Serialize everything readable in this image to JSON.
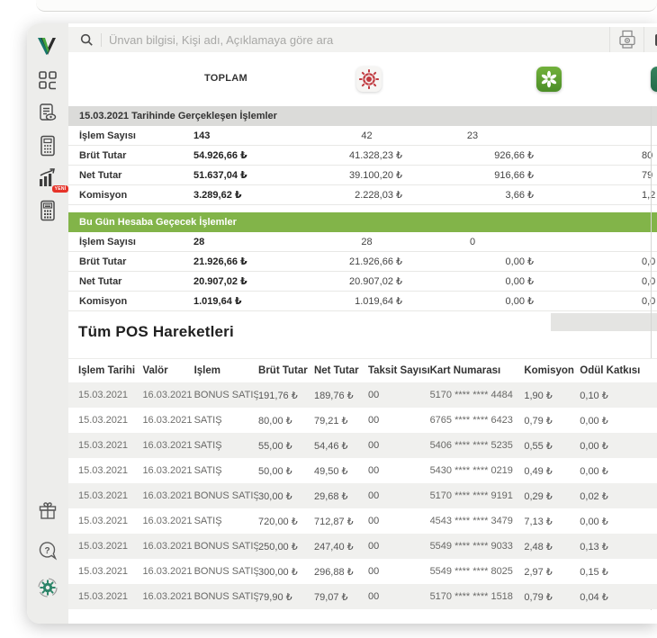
{
  "colors": {
    "accent_green": "#82b449",
    "badge_red": "#e63329",
    "denizbank_red": "#c03a40",
    "sekerbank_green": "#5d9e2f",
    "bank3_green": "#2f7e57",
    "section_header_gray": "#dbdbd9"
  },
  "search": {
    "placeholder": "Ünvan bilgisi, Kişi adı, Açıklamaya göre ara"
  },
  "sidebar": {
    "badge_new": "YENİ",
    "icons": [
      "logo-v",
      "dashboard-icon",
      "report-view-icon",
      "pos-terminal-icon",
      "trend-chart-icon",
      "pos-terminal-2-icon",
      "gift-icon",
      "help-icon",
      "settings-icon"
    ]
  },
  "topbar": {
    "icons": [
      "fax-icon",
      "clipped-icon"
    ]
  },
  "bank_header": {
    "toplam_label": "TOPLAM",
    "columns": [
      "denizbank-logo",
      "sekerbank-logo",
      "bank-logo-clipped"
    ]
  },
  "summary": {
    "sections": [
      {
        "title": "15.03.2021 Tarihinde Gerçekleşen İşlemler",
        "style": "gray",
        "rows": [
          {
            "label": "İşlem Sayısı",
            "toplam": "143",
            "bank1": "42",
            "bank2": "23",
            "bank3": ""
          },
          {
            "label": "Brüt Tutar",
            "toplam": "54.926,66 ₺",
            "bank1": "41.328,23 ₺",
            "bank2": "926,66 ₺",
            "bank3": "80"
          },
          {
            "label": "Net Tutar",
            "toplam": "51.637,04 ₺",
            "bank1": "39.100,20 ₺",
            "bank2": "916,66 ₺",
            "bank3": "79"
          },
          {
            "label": "Komisyon",
            "toplam": "3.289,62 ₺",
            "bank1": "2.228,03 ₺",
            "bank2": "3,66 ₺",
            "bank3": "1,2"
          }
        ]
      },
      {
        "title": "Bu Gün Hesaba Geçecek İşlemler",
        "style": "green",
        "rows": [
          {
            "label": "İşlem Sayısı",
            "toplam": "28",
            "bank1": "28",
            "bank2": "0",
            "bank3": ""
          },
          {
            "label": "Brüt Tutar",
            "toplam": "21.926,66 ₺",
            "bank1": "21.926,66 ₺",
            "bank2": "0,00 ₺",
            "bank3": "0,0"
          },
          {
            "label": "Net Tutar",
            "toplam": "20.907,02 ₺",
            "bank1": "20.907,02 ₺",
            "bank2": "0,00 ₺",
            "bank3": "0,0"
          },
          {
            "label": "Komisyon",
            "toplam": "1.019,64 ₺",
            "bank1": "1.019,64 ₺",
            "bank2": "0,00 ₺",
            "bank3": "0,0"
          }
        ]
      }
    ]
  },
  "pos_table": {
    "title": "Tüm POS Hareketleri",
    "columns": [
      "İşlem Tarihi",
      "Valör",
      "İşlem",
      "Brüt Tutar",
      "Net Tutar",
      "Taksit Sayısı",
      "Kart Numarası",
      "Komisyon",
      "Ödül Katkısı"
    ],
    "rows": [
      [
        "15.03.2021",
        "16.03.2021",
        "BONUS SATIŞ",
        "191,76 ₺",
        "189,76 ₺",
        "00",
        "5170 **** **** 4484",
        "1,90 ₺",
        "0,10 ₺"
      ],
      [
        "15.03.2021",
        "16.03.2021",
        "SATIŞ",
        "80,00 ₺",
        "79,21 ₺",
        "00",
        "6765 **** **** 6423",
        "0,79 ₺",
        "0,00 ₺"
      ],
      [
        "15.03.2021",
        "16.03.2021",
        "SATIŞ",
        "55,00 ₺",
        "54,46 ₺",
        "00",
        "5406 **** **** 5235",
        "0,55 ₺",
        "0,00 ₺"
      ],
      [
        "15.03.2021",
        "16.03.2021",
        "SATIŞ",
        "50,00 ₺",
        "49,50 ₺",
        "00",
        "5430 **** **** 0219",
        "0,49 ₺",
        "0,00 ₺"
      ],
      [
        "15.03.2021",
        "16.03.2021",
        "BONUS SATIŞ",
        "30,00 ₺",
        "29,68 ₺",
        "00",
        "5170 **** **** 9191",
        "0,29 ₺",
        "0,02 ₺"
      ],
      [
        "15.03.2021",
        "16.03.2021",
        "SATIŞ",
        "720,00 ₺",
        "712,87 ₺",
        "00",
        "4543 **** **** 3479",
        "7,13 ₺",
        "0,00 ₺"
      ],
      [
        "15.03.2021",
        "16.03.2021",
        "BONUS SATIŞ",
        "250,00 ₺",
        "247,40 ₺",
        "00",
        "5549 **** **** 9033",
        "2,48 ₺",
        "0,13 ₺"
      ],
      [
        "15.03.2021",
        "16.03.2021",
        "BONUS SATIŞ",
        "300,00 ₺",
        "296,88 ₺",
        "00",
        "5549 **** **** 8025",
        "2,97 ₺",
        "0,15 ₺"
      ],
      [
        "15.03.2021",
        "16.03.2021",
        "BONUS SATIŞ",
        "79,90 ₺",
        "79,07 ₺",
        "00",
        "5170 **** **** 1518",
        "0,79 ₺",
        "0,04 ₺"
      ]
    ]
  }
}
